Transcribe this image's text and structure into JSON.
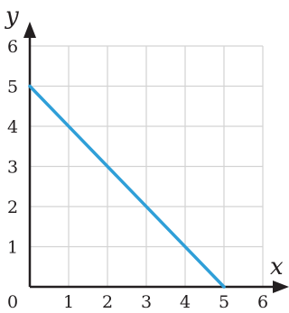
{
  "chart_data": {
    "type": "line",
    "xlabel": "x",
    "ylabel": "y",
    "xlim": [
      0,
      6
    ],
    "ylim": [
      0,
      6
    ],
    "x_ticks": [
      "0",
      "1",
      "2",
      "3",
      "4",
      "5",
      "6"
    ],
    "y_ticks": [
      "1",
      "2",
      "3",
      "4",
      "5",
      "6"
    ],
    "grid": true,
    "series": [
      {
        "x": [
          0,
          5
        ],
        "y": [
          5,
          0
        ]
      }
    ],
    "colors": {
      "line": "#2f9fd8",
      "grid": "#d3d3d3",
      "axis": "#231f20"
    }
  }
}
